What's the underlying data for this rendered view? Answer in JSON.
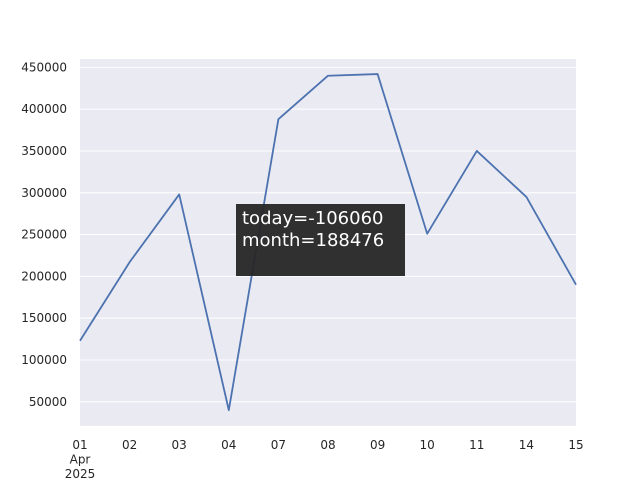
{
  "chart_data": {
    "type": "line",
    "categories": [
      "01\nApr\n2025",
      "02",
      "03",
      "04",
      "07",
      "08",
      "09",
      "10",
      "11",
      "14",
      "15"
    ],
    "values": [
      123000,
      217000,
      298000,
      40000,
      388000,
      440000,
      442000,
      251000,
      350000,
      295000,
      190000
    ],
    "color": "#4c72b0",
    "ylim": [
      21000,
      460000
    ],
    "yticks": [
      50000,
      100000,
      150000,
      200000,
      250000,
      300000,
      350000,
      400000,
      450000
    ],
    "grid": true,
    "annotations": [
      "today=-106060",
      "month=188476"
    ]
  }
}
